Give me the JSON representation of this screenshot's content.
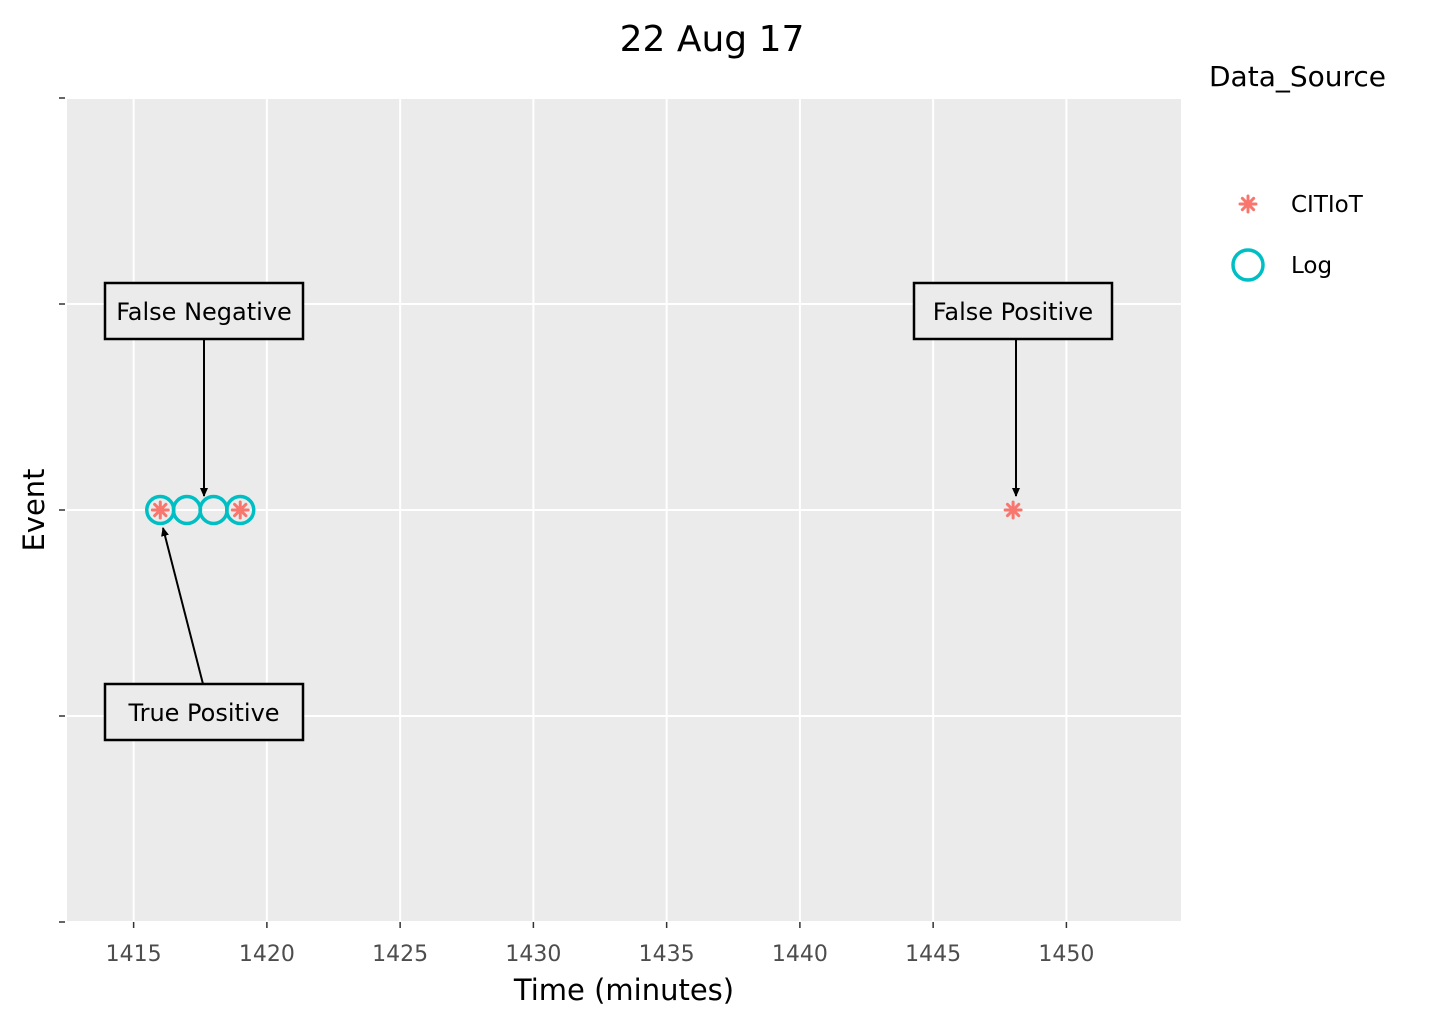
{
  "chart_data": {
    "type": "scatter",
    "title": "22 Aug 17",
    "xlabel": "Time (minutes)",
    "ylabel": "Event",
    "xlim": [
      1412.5,
      1454.3
    ],
    "x_ticks": [
      1415,
      1420,
      1425,
      1430,
      1435,
      1440,
      1445,
      1450
    ],
    "y_ticks_count": 5,
    "y_value": 3,
    "ylim": [
      1,
      5
    ],
    "grid": true,
    "legend_title": "Data_Source",
    "legend_position": "right",
    "series": [
      {
        "name": "CITIoT",
        "marker": "asterisk",
        "color": "#F8766D",
        "x": [
          1416,
          1419,
          1448
        ],
        "y": [
          3,
          3,
          3
        ]
      },
      {
        "name": "Log",
        "marker": "open-circle",
        "color": "#00BFC4",
        "x": [
          1416,
          1417,
          1418,
          1419
        ],
        "y": [
          3,
          3,
          3,
          3
        ]
      }
    ],
    "annotations": [
      {
        "label": "False Negative",
        "points_to": [
          1417.6,
          3
        ]
      },
      {
        "label": "False Positive",
        "points_to": [
          1448,
          3
        ]
      },
      {
        "label": "True Positive",
        "points_to": [
          1416,
          3
        ]
      }
    ]
  }
}
